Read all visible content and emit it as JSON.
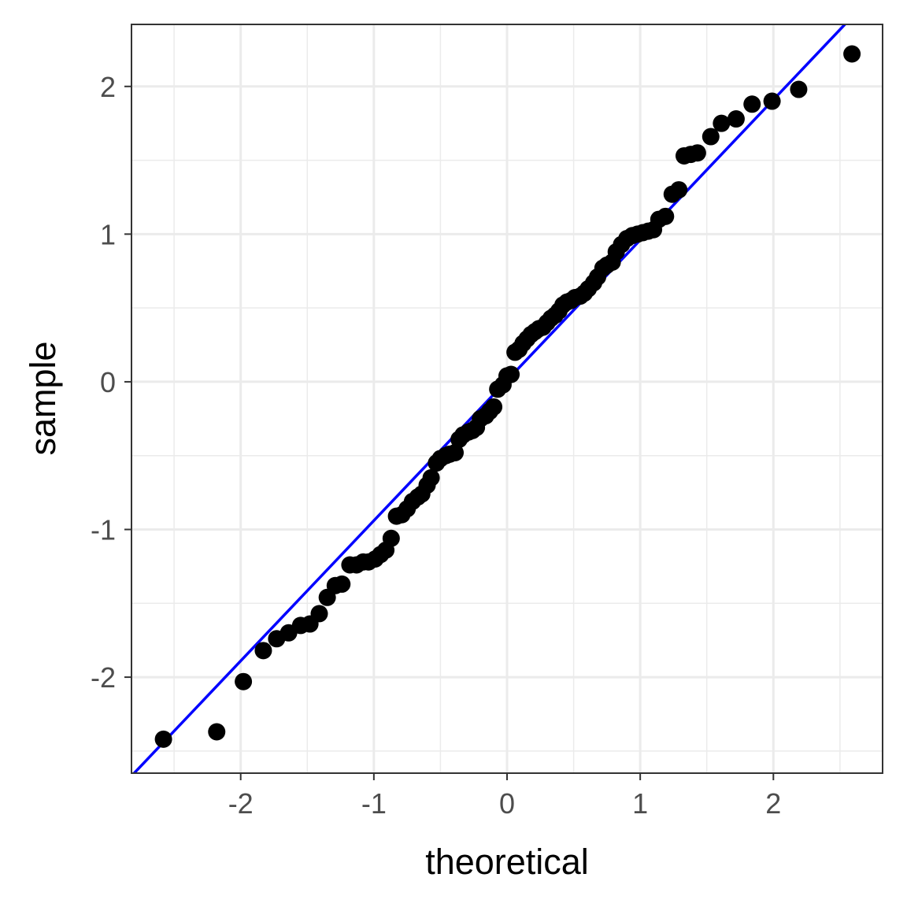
{
  "chart_data": {
    "type": "scatter",
    "subtype": "qq-plot",
    "xlabel": "theoretical",
    "ylabel": "sample",
    "xlim": [
      -2.82,
      2.82
    ],
    "ylim": [
      -2.65,
      2.42
    ],
    "x_ticks": [
      -2,
      -1,
      0,
      1,
      2
    ],
    "x_tick_labels": [
      "-2",
      "-1",
      "0",
      "1",
      "2"
    ],
    "y_ticks": [
      -2,
      -1,
      0,
      1,
      2
    ],
    "y_tick_labels": [
      "-2",
      "-1",
      "0",
      "1",
      "2"
    ],
    "grid": true,
    "legend": "none",
    "colors": {
      "points": "#000000",
      "reference_line": "#0000ff",
      "grid_major": "#ebebeb",
      "grid_minor": "#f3f3f3",
      "panel_border": "#333333"
    },
    "reference_line": {
      "intercept": 0.01,
      "slope": 0.95
    },
    "points": [
      [
        -2.58,
        -2.42
      ],
      [
        -2.18,
        -2.37
      ],
      [
        -1.98,
        -2.03
      ],
      [
        -1.83,
        -1.82
      ],
      [
        -1.73,
        -1.74
      ],
      [
        -1.64,
        -1.7
      ],
      [
        -1.55,
        -1.65
      ],
      [
        -1.48,
        -1.64
      ],
      [
        -1.41,
        -1.57
      ],
      [
        -1.35,
        -1.46
      ],
      [
        -1.29,
        -1.38
      ],
      [
        -1.24,
        -1.37
      ],
      [
        -1.18,
        -1.24
      ],
      [
        -1.13,
        -1.24
      ],
      [
        -1.08,
        -1.22
      ],
      [
        -1.04,
        -1.22
      ],
      [
        -0.99,
        -1.2
      ],
      [
        -0.95,
        -1.17
      ],
      [
        -0.91,
        -1.14
      ],
      [
        -0.87,
        -1.06
      ],
      [
        -0.83,
        -0.91
      ],
      [
        -0.79,
        -0.9
      ],
      [
        -0.75,
        -0.86
      ],
      [
        -0.71,
        -0.81
      ],
      [
        -0.67,
        -0.78
      ],
      [
        -0.64,
        -0.76
      ],
      [
        -0.6,
        -0.7
      ],
      [
        -0.57,
        -0.65
      ],
      [
        -0.53,
        -0.55
      ],
      [
        -0.5,
        -0.52
      ],
      [
        -0.46,
        -0.5
      ],
      [
        -0.43,
        -0.49
      ],
      [
        -0.39,
        -0.48
      ],
      [
        -0.36,
        -0.39
      ],
      [
        -0.33,
        -0.36
      ],
      [
        -0.29,
        -0.34
      ],
      [
        -0.26,
        -0.33
      ],
      [
        -0.23,
        -0.31
      ],
      [
        -0.2,
        -0.25
      ],
      [
        -0.16,
        -0.23
      ],
      [
        -0.13,
        -0.2
      ],
      [
        -0.1,
        -0.17
      ],
      [
        -0.07,
        -0.05
      ],
      [
        -0.03,
        -0.02
      ],
      [
        0.0,
        0.04
      ],
      [
        0.03,
        0.05
      ],
      [
        0.06,
        0.2
      ],
      [
        0.09,
        0.22
      ],
      [
        0.12,
        0.26
      ],
      [
        0.15,
        0.29
      ],
      [
        0.18,
        0.32
      ],
      [
        0.21,
        0.34
      ],
      [
        0.24,
        0.36
      ],
      [
        0.27,
        0.37
      ],
      [
        0.3,
        0.4
      ],
      [
        0.33,
        0.43
      ],
      [
        0.36,
        0.45
      ],
      [
        0.39,
        0.48
      ],
      [
        0.42,
        0.52
      ],
      [
        0.45,
        0.54
      ],
      [
        0.48,
        0.55
      ],
      [
        0.51,
        0.57
      ],
      [
        0.55,
        0.58
      ],
      [
        0.58,
        0.6
      ],
      [
        0.61,
        0.63
      ],
      [
        0.65,
        0.67
      ],
      [
        0.68,
        0.71
      ],
      [
        0.72,
        0.77
      ],
      [
        0.75,
        0.79
      ],
      [
        0.79,
        0.81
      ],
      [
        0.82,
        0.88
      ],
      [
        0.86,
        0.93
      ],
      [
        0.9,
        0.97
      ],
      [
        0.94,
        0.99
      ],
      [
        0.98,
        1.0
      ],
      [
        1.02,
        1.01
      ],
      [
        1.06,
        1.02
      ],
      [
        1.1,
        1.03
      ],
      [
        1.14,
        1.1
      ],
      [
        1.19,
        1.12
      ],
      [
        1.24,
        1.27
      ],
      [
        1.29,
        1.3
      ],
      [
        1.33,
        1.53
      ],
      [
        1.38,
        1.54
      ],
      [
        1.43,
        1.55
      ],
      [
        1.53,
        1.66
      ],
      [
        1.61,
        1.75
      ],
      [
        1.72,
        1.78
      ],
      [
        1.84,
        1.88
      ],
      [
        1.99,
        1.9
      ],
      [
        2.19,
        1.98
      ],
      [
        2.59,
        2.22
      ]
    ]
  }
}
